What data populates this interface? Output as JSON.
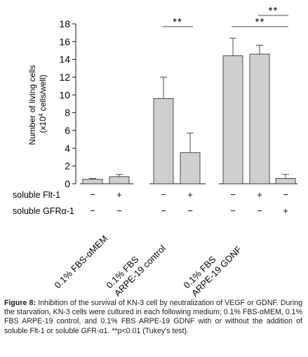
{
  "chart_data": {
    "type": "bar",
    "ylabel_main": "Number of living cells",
    "ylabel_unit_prefix": "(x10",
    "ylabel_unit_exp": "4",
    "ylabel_unit_suffix": " cells/well)",
    "ylim": [
      0,
      18
    ],
    "yticks": [
      "0",
      "2",
      "4",
      "6",
      "8",
      "10",
      "12",
      "14",
      "16",
      "18"
    ],
    "grid": false,
    "bar_color": "#cfcfcf",
    "groups": [
      {
        "label_lines": [
          "0.1% FBS-αMEM"
        ]
      },
      {
        "label_lines": [
          "0.1% FBS",
          "ARPE-19 control"
        ]
      },
      {
        "label_lines": [
          "0.1% FBS",
          "ARPE-19 GDNF"
        ]
      }
    ],
    "bars": [
      {
        "group": 0,
        "value": 0.5,
        "error": 0.1
      },
      {
        "group": 0,
        "value": 0.8,
        "error": 0.25
      },
      {
        "group": 1,
        "value": 9.6,
        "error": 2.4
      },
      {
        "group": 1,
        "value": 3.5,
        "error": 2.2
      },
      {
        "group": 2,
        "value": 14.4,
        "error": 2.0
      },
      {
        "group": 2,
        "value": 14.6,
        "error": 1.0
      },
      {
        "group": 2,
        "value": 0.6,
        "error": 0.45
      }
    ],
    "treatment_rows": [
      {
        "label": "soluble Flt-1",
        "marks": [
          "−",
          "+",
          "−",
          "+",
          "−",
          "+",
          "−"
        ]
      },
      {
        "label": "soluble GFRα-1",
        "marks": [
          "−",
          "−",
          "−",
          "−",
          "−",
          "−",
          "+"
        ]
      }
    ],
    "significance": [
      {
        "from": 2,
        "to": 3,
        "label": "**"
      },
      {
        "from": 4,
        "to": 6,
        "label": "**"
      },
      {
        "from": 5,
        "to": 6,
        "label": "**"
      }
    ]
  },
  "caption": {
    "prefix": "Figure 8:",
    "text": " Inhibition of the survival of KN-3 cell by neutralization of VEGF or GDNF. During the starvation, KN-3 cells were cultured in each following medium; 0.1% FBS-αMEM, 0.1% FBS ARPE-19 control, and 0.1% FBS ARPE-19 GDNF with or without the addition of soluble Flt-1 or soluble GFR-α1. **p<0.01 (Tukey's test)."
  }
}
